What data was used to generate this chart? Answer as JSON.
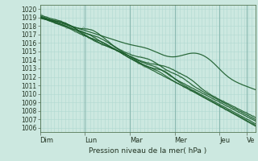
{
  "xlabel": "Pression niveau de la mer( hPa )",
  "ylim": [
    1005.5,
    1020.5
  ],
  "yticks": [
    1006,
    1007,
    1008,
    1009,
    1010,
    1011,
    1012,
    1013,
    1014,
    1015,
    1016,
    1017,
    1018,
    1019,
    1020
  ],
  "day_labels": [
    "Dim",
    "Lun",
    "Mar",
    "Mer",
    "Jeu",
    "Ve"
  ],
  "day_x": [
    0,
    0.208,
    0.417,
    0.625,
    0.833,
    0.958
  ],
  "bg_color": "#cce8e0",
  "grid_minor_color": "#b0d8d0",
  "grid_major_color": "#88b8b0",
  "line_color": "#1a5c2a",
  "line_color2": "#2d7a40"
}
